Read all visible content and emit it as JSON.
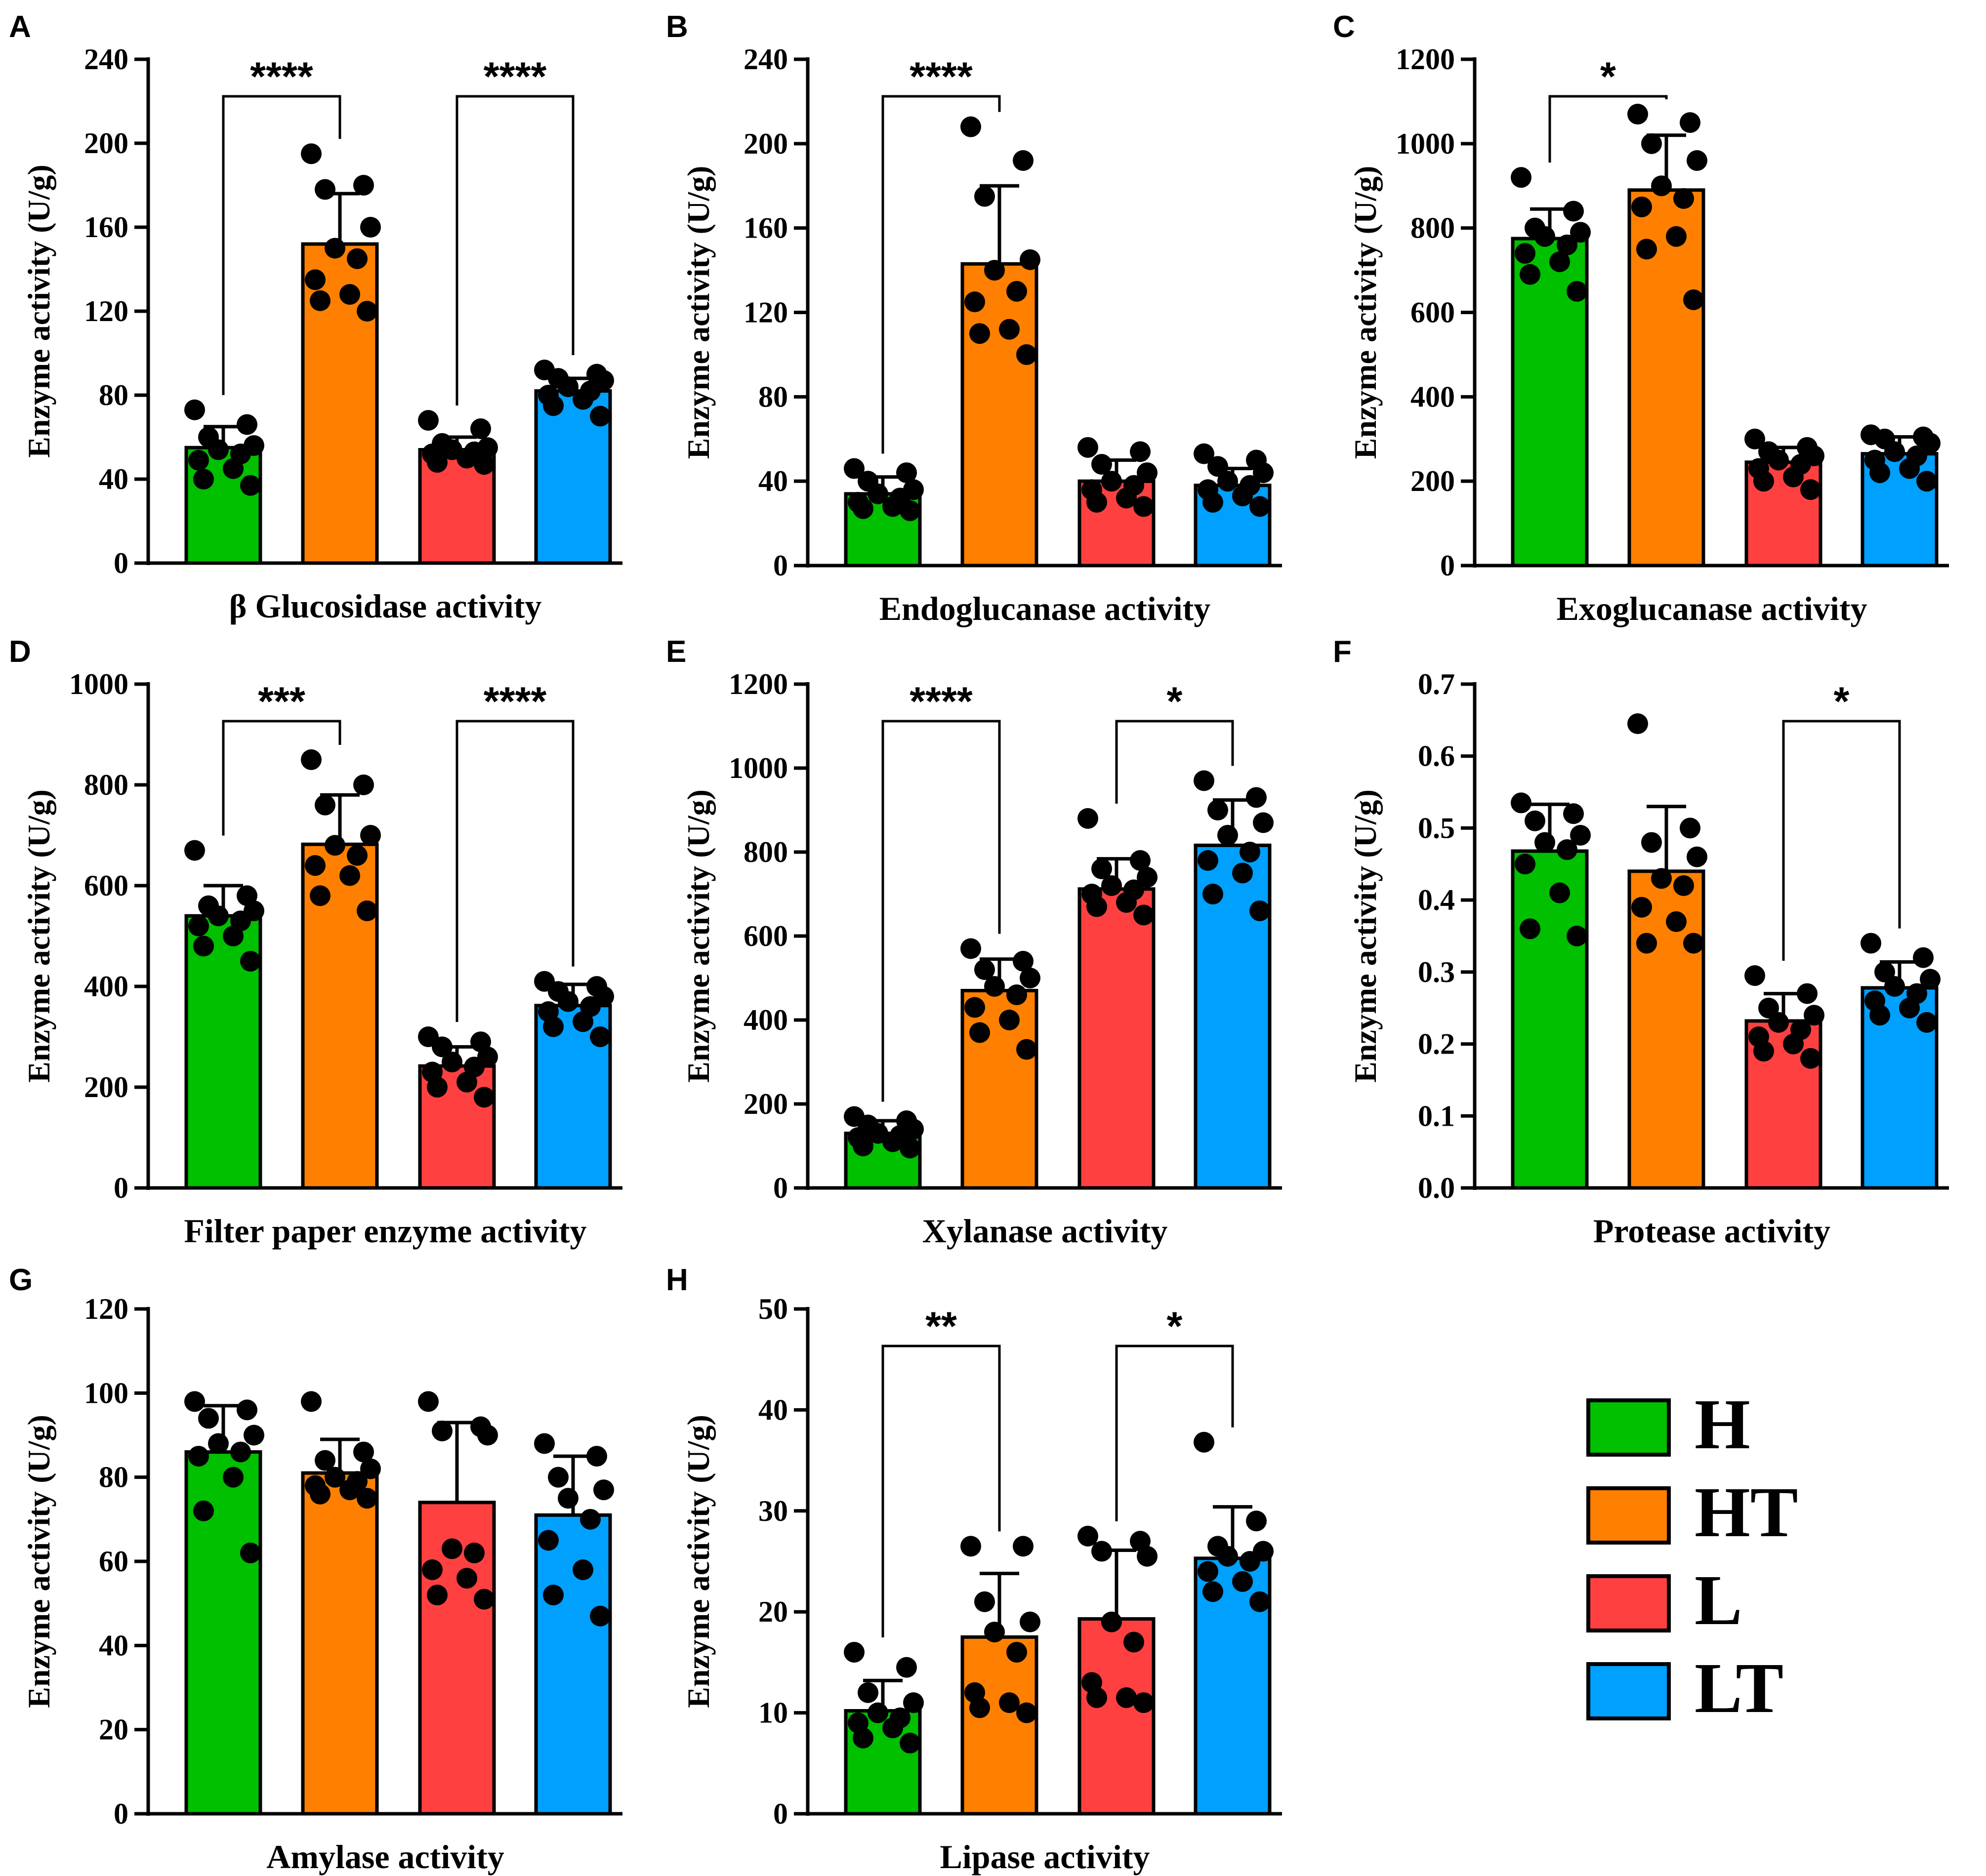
{
  "group_colors": {
    "H": "#00c000",
    "HT": "#ff8000",
    "L": "#ff4040",
    "LT": "#00a0ff"
  },
  "legend": {
    "entries": [
      "H",
      "HT",
      "L",
      "LT"
    ]
  },
  "chart_data": [
    {
      "letter": "A",
      "type": "bar",
      "title": "β Glucosidase activity",
      "ylabel": "Enzyme activity (U/g)",
      "categories": [
        "H",
        "HT",
        "L",
        "LT"
      ],
      "ylim": [
        0,
        240
      ],
      "yticks": [
        0,
        40,
        80,
        120,
        160,
        200,
        240
      ],
      "tick_labels": [
        "0",
        "40",
        "80",
        "120",
        "160",
        "200",
        "240"
      ],
      "values": [
        55,
        152,
        54,
        82
      ],
      "sd": [
        10,
        24,
        6,
        6
      ],
      "points": [
        [
          73,
          66,
          60,
          56,
          54,
          52,
          49,
          45,
          40,
          37
        ],
        [
          195,
          180,
          178,
          160,
          150,
          145,
          135,
          128,
          125,
          120
        ],
        [
          68,
          64,
          57,
          55,
          54,
          53,
          52,
          50,
          48,
          47
        ],
        [
          92,
          90,
          88,
          87,
          84,
          82,
          80,
          78,
          75,
          70
        ]
      ],
      "significance": [
        {
          "pair": [
            0,
            1
          ],
          "label": "****"
        },
        {
          "pair": [
            2,
            3
          ],
          "label": "****"
        }
      ]
    },
    {
      "letter": "B",
      "type": "bar",
      "title": "Endoglucanase activity",
      "ylabel": "Enzyme activity (U/g)",
      "categories": [
        "H",
        "HT",
        "L",
        "LT"
      ],
      "ylim": [
        0,
        240
      ],
      "yticks": [
        0,
        40,
        80,
        120,
        160,
        200,
        240
      ],
      "tick_labels": [
        "0",
        "40",
        "80",
        "120",
        "160",
        "200",
        "240"
      ],
      "values": [
        34,
        143,
        40,
        38
      ],
      "sd": [
        8,
        37,
        10,
        8
      ],
      "points": [
        [
          46,
          44,
          40,
          36,
          34,
          32,
          30,
          28,
          27,
          26
        ],
        [
          208,
          192,
          175,
          145,
          140,
          130,
          125,
          112,
          110,
          100
        ],
        [
          56,
          54,
          48,
          44,
          40,
          38,
          36,
          32,
          30,
          28
        ],
        [
          53,
          50,
          47,
          44,
          40,
          38,
          36,
          33,
          30,
          28
        ]
      ],
      "significance": [
        {
          "pair": [
            0,
            1
          ],
          "label": "****"
        }
      ]
    },
    {
      "letter": "C",
      "type": "bar",
      "title": "Exoglucanase activity",
      "ylabel": "Enzyme activity (U/g)",
      "categories": [
        "H",
        "HT",
        "L",
        "LT"
      ],
      "ylim": [
        0,
        1200
      ],
      "yticks": [
        0,
        200,
        400,
        600,
        800,
        1000,
        1200
      ],
      "tick_labels": [
        "0",
        "200",
        "400",
        "600",
        "800",
        "1000",
        "1200"
      ],
      "values": [
        775,
        890,
        245,
        265
      ],
      "sd": [
        70,
        130,
        35,
        40
      ],
      "points": [
        [
          920,
          840,
          800,
          790,
          780,
          760,
          740,
          720,
          690,
          650
        ],
        [
          1070,
          1050,
          1000,
          960,
          900,
          870,
          850,
          780,
          750,
          630
        ],
        [
          300,
          280,
          270,
          260,
          250,
          240,
          230,
          210,
          200,
          180
        ],
        [
          310,
          305,
          300,
          290,
          270,
          260,
          250,
          230,
          220,
          200
        ]
      ],
      "significance": [
        {
          "pair": [
            0,
            1
          ],
          "label": "*"
        }
      ]
    },
    {
      "letter": "D",
      "type": "bar",
      "title": "Filter paper enzyme activity",
      "ylabel": "Enzyme activity (U/g)",
      "categories": [
        "H",
        "HT",
        "L",
        "LT"
      ],
      "ylim": [
        0,
        1000
      ],
      "yticks": [
        0,
        200,
        400,
        600,
        800,
        1000
      ],
      "tick_labels": [
        "0",
        "200",
        "400",
        "600",
        "800",
        "1000"
      ],
      "values": [
        540,
        682,
        242,
        362
      ],
      "sd": [
        60,
        98,
        38,
        42
      ],
      "points": [
        [
          670,
          580,
          560,
          550,
          540,
          530,
          520,
          500,
          480,
          450
        ],
        [
          850,
          800,
          760,
          700,
          680,
          660,
          640,
          620,
          580,
          550
        ],
        [
          300,
          290,
          280,
          260,
          250,
          240,
          230,
          210,
          200,
          180
        ],
        [
          410,
          400,
          390,
          380,
          370,
          360,
          350,
          330,
          320,
          300
        ]
      ],
      "significance": [
        {
          "pair": [
            0,
            1
          ],
          "label": "***"
        },
        {
          "pair": [
            2,
            3
          ],
          "label": "****"
        }
      ]
    },
    {
      "letter": "E",
      "type": "bar",
      "title": "Xylanase activity",
      "ylabel": "Enzyme activity (U/g)",
      "categories": [
        "H",
        "HT",
        "L",
        "LT"
      ],
      "ylim": [
        0,
        1200
      ],
      "yticks": [
        0,
        200,
        400,
        600,
        800,
        1000,
        1200
      ],
      "tick_labels": [
        "0",
        "200",
        "400",
        "600",
        "800",
        "1000",
        "1200"
      ],
      "values": [
        130,
        470,
        712,
        816
      ],
      "sd": [
        30,
        75,
        72,
        108
      ],
      "points": [
        [
          170,
          160,
          150,
          140,
          130,
          125,
          120,
          110,
          100,
          95
        ],
        [
          570,
          540,
          520,
          500,
          480,
          460,
          430,
          400,
          370,
          330
        ],
        [
          880,
          780,
          760,
          740,
          720,
          710,
          700,
          680,
          670,
          650
        ],
        [
          970,
          930,
          900,
          870,
          840,
          800,
          780,
          750,
          700,
          660
        ]
      ],
      "significance": [
        {
          "pair": [
            0,
            1
          ],
          "label": "****"
        },
        {
          "pair": [
            2,
            3
          ],
          "label": "*"
        }
      ]
    },
    {
      "letter": "F",
      "type": "bar",
      "title": "Protease activity",
      "ylabel": "Enzyme activity (U/g)",
      "categories": [
        "H",
        "HT",
        "L",
        "LT"
      ],
      "ylim": [
        0,
        0.7
      ],
      "yticks": [
        0,
        0.1,
        0.2,
        0.3,
        0.4,
        0.5,
        0.6,
        0.7
      ],
      "tick_labels": [
        "0.0",
        "0.1",
        "0.2",
        "0.3",
        "0.4",
        "0.5",
        "0.6",
        "0.7"
      ],
      "values": [
        0.468,
        0.44,
        0.232,
        0.278
      ],
      "sd": [
        0.065,
        0.09,
        0.038,
        0.036
      ],
      "points": [
        [
          0.535,
          0.52,
          0.51,
          0.49,
          0.48,
          0.47,
          0.45,
          0.41,
          0.36,
          0.35
        ],
        [
          0.645,
          0.5,
          0.48,
          0.46,
          0.43,
          0.42,
          0.39,
          0.37,
          0.34,
          0.34
        ],
        [
          0.295,
          0.27,
          0.25,
          0.24,
          0.23,
          0.22,
          0.21,
          0.2,
          0.19,
          0.18
        ],
        [
          0.34,
          0.32,
          0.3,
          0.29,
          0.28,
          0.27,
          0.26,
          0.25,
          0.24,
          0.23
        ]
      ],
      "significance": [
        {
          "pair": [
            2,
            3
          ],
          "label": "*"
        }
      ]
    },
    {
      "letter": "G",
      "type": "bar",
      "title": "Amylase activity",
      "ylabel": "Enzyme activity (U/g)",
      "categories": [
        "H",
        "HT",
        "L",
        "LT"
      ],
      "ylim": [
        0,
        120
      ],
      "yticks": [
        0,
        20,
        40,
        60,
        80,
        100,
        120
      ],
      "tick_labels": [
        "0",
        "20",
        "40",
        "60",
        "80",
        "100",
        "120"
      ],
      "values": [
        86,
        81,
        74,
        71
      ],
      "sd": [
        11,
        8,
        19,
        14
      ],
      "points": [
        [
          98,
          96,
          94,
          90,
          88,
          86,
          85,
          80,
          72,
          62
        ],
        [
          98,
          86,
          84,
          82,
          80,
          79,
          78,
          77,
          76,
          75
        ],
        [
          98,
          92,
          91,
          90,
          63,
          62,
          58,
          56,
          52,
          51
        ],
        [
          88,
          85,
          80,
          77,
          75,
          70,
          65,
          58,
          52,
          47
        ]
      ],
      "significance": []
    },
    {
      "letter": "H",
      "type": "bar",
      "title": "Lipase activity",
      "ylabel": "Enzyme activity (U/g)",
      "categories": [
        "H",
        "HT",
        "L",
        "LT"
      ],
      "ylim": [
        0,
        50
      ],
      "yticks": [
        0,
        10,
        20,
        30,
        40,
        50
      ],
      "tick_labels": [
        "0",
        "10",
        "20",
        "30",
        "40",
        "50"
      ],
      "values": [
        10.2,
        17.5,
        19.3,
        25.3
      ],
      "sd": [
        3,
        6.3,
        6.8,
        5.1
      ],
      "points": [
        [
          16,
          14.5,
          12,
          11,
          10,
          9.5,
          9,
          8.5,
          7.5,
          7
        ],
        [
          26.5,
          26.5,
          21,
          19,
          18,
          16,
          12,
          11,
          10.5,
          10
        ],
        [
          27.5,
          27,
          26,
          25.5,
          19,
          17,
          13,
          11.5,
          11.5,
          11
        ],
        [
          36.8,
          29,
          26.5,
          26,
          25.5,
          25,
          24,
          23,
          22,
          21
        ]
      ],
      "significance": [
        {
          "pair": [
            0,
            1
          ],
          "label": "**"
        },
        {
          "pair": [
            2,
            3
          ],
          "label": "*"
        }
      ]
    }
  ]
}
